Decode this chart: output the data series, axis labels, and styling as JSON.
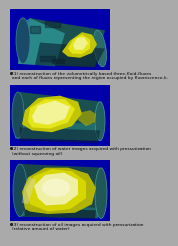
{
  "figure_bg": "#aaaaaa",
  "caption_bg": "#aaaaaa",
  "text_color": "#000000",
  "text_fontsize": 3.2,
  "panel_bg": "#0000aa",
  "captions": [
    "(1) reconstruction of the volumetrically based three-fluid-fluxes\nand each of fluxes representing the region occupied by fluorescence-k.",
    "(2) reconstruction of water images acquired with pressurization\n(without squeezing oil)",
    "(3) reconstruction of oil images acquired with pressurization\n(relative amount of water)"
  ],
  "heights": [
    58,
    14,
    58,
    14,
    58,
    14
  ],
  "cylinder_color": "#2a8888",
  "cylinder_dark": "#003366",
  "blob_yellow": "#dddd00",
  "blob_white": "#ffffff"
}
